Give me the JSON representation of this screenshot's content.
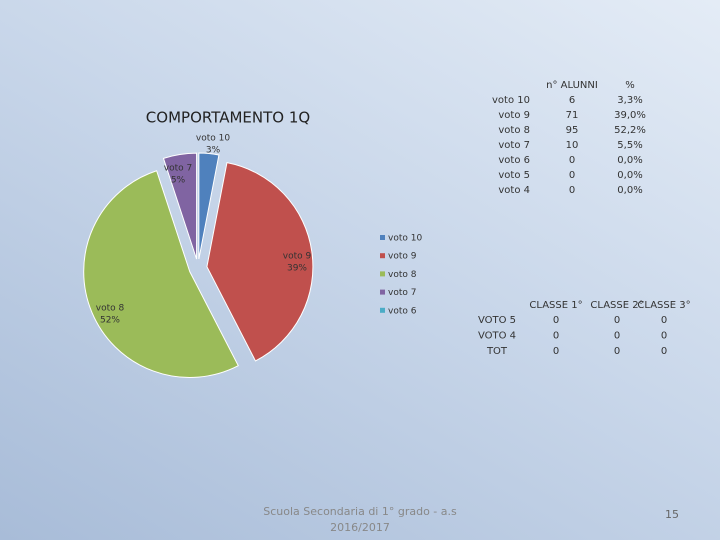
{
  "chart_data": {
    "type": "pie",
    "title": "COMPORTAMENTO 1Q",
    "categories": [
      "voto 10",
      "voto 9",
      "voto 8",
      "voto 7",
      "voto 6"
    ],
    "values": [
      3,
      39,
      52,
      5,
      0
    ],
    "value_labels": [
      "3%",
      "39%",
      "52%",
      "5%",
      null
    ],
    "colors": [
      "#4f81bd",
      "#c0504d",
      "#9bbb59",
      "#8064a2",
      "#4bacc6"
    ],
    "legend": "right"
  },
  "table_students": {
    "header": [
      "n° ALUNNI",
      "%"
    ],
    "rows": [
      [
        "voto 10",
        6,
        "3,3%"
      ],
      [
        "voto 9",
        71,
        "39,0%"
      ],
      [
        "voto 8",
        95,
        "52,2%"
      ],
      [
        "voto 7",
        10,
        "5,5%"
      ],
      [
        "voto 6",
        0,
        "0,0%"
      ],
      [
        "voto 5",
        0,
        "0,0%"
      ],
      [
        "voto 4",
        0,
        "0,0%"
      ]
    ]
  },
  "table_classes": {
    "header": [
      "CLASSE 1°",
      "CLASSE 2°",
      "CLASSE 3°"
    ],
    "rows": [
      [
        "VOTO 5",
        0,
        0,
        0
      ],
      [
        "VOTO 4",
        0,
        0,
        0
      ],
      [
        "TOT",
        0,
        0,
        0
      ]
    ]
  },
  "footer": {
    "school": [
      "Scuola Secondaria di 1° grado - a.s",
      "2016/2017"
    ],
    "page": 15
  }
}
